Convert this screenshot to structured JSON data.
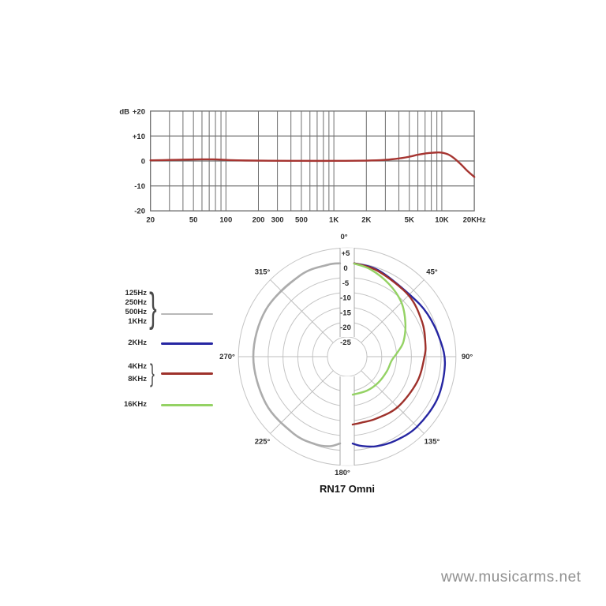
{
  "watermark": "www.musicarms.net",
  "polar_title": "RN17 Omni",
  "colors": {
    "grid": "#6e6e6e",
    "fr_curve": "#a63531",
    "ring": "#c4c4c4",
    "radial": "#bdbdbd",
    "channel_border": "#a8a8a8",
    "text": "#2b2b2b"
  },
  "legend": {
    "groups": [
      {
        "labels": [
          "125Hz",
          "250Hz",
          "500Hz",
          "1KHz"
        ],
        "brace": "}",
        "color": "#b8b8b8"
      },
      {
        "labels": [
          "2KHz"
        ],
        "brace": "",
        "color": "#2626a2"
      },
      {
        "labels": [
          "4KHz",
          "8KHz"
        ],
        "brace": "}",
        "color": "#9e312b"
      },
      {
        "labels": [
          "16KHz"
        ],
        "brace": "",
        "color": "#94d264"
      }
    ]
  },
  "chart_data": [
    {
      "type": "line",
      "name": "frequency-response",
      "ylabel": "dB",
      "xlabel": "",
      "xlim": [
        20,
        20000
      ],
      "ylim": [
        -20,
        20
      ],
      "grid": true,
      "yticks": [
        {
          "label": "+20",
          "db": 20
        },
        {
          "label": "+10",
          "db": 10
        },
        {
          "label": "0",
          "db": 0
        },
        {
          "label": "-10",
          "db": -10
        },
        {
          "label": "-20",
          "db": -20
        }
      ],
      "xticks": [
        {
          "label": "20",
          "f": 20
        },
        {
          "label": "50",
          "f": 50
        },
        {
          "label": "100",
          "f": 100
        },
        {
          "label": "200",
          "f": 200
        },
        {
          "label": "300",
          "f": 300
        },
        {
          "label": "500",
          "f": 500
        },
        {
          "label": "1K",
          "f": 1000
        },
        {
          "label": "2K",
          "f": 2000
        },
        {
          "label": "5K",
          "f": 5000
        },
        {
          "label": "10K",
          "f": 10000
        },
        {
          "label": "20KHz",
          "f": 20000
        }
      ],
      "minor_grid_freqs": [
        30,
        40,
        50,
        60,
        70,
        80,
        90,
        100,
        200,
        300,
        400,
        500,
        600,
        700,
        800,
        900,
        1000,
        2000,
        3000,
        4000,
        5000,
        6000,
        7000,
        8000,
        9000,
        10000
      ],
      "series": [
        {
          "name": "response",
          "color": "#a63531",
          "points": [
            [
              20,
              0.25
            ],
            [
              30,
              0.4
            ],
            [
              45,
              0.55
            ],
            [
              60,
              0.65
            ],
            [
              75,
              0.65
            ],
            [
              90,
              0.55
            ],
            [
              110,
              0.35
            ],
            [
              150,
              0.2
            ],
            [
              250,
              0.1
            ],
            [
              500,
              0.05
            ],
            [
              1000,
              0.05
            ],
            [
              2000,
              0.15
            ],
            [
              3000,
              0.45
            ],
            [
              4000,
              1.0
            ],
            [
              5000,
              1.7
            ],
            [
              6000,
              2.5
            ],
            [
              7000,
              3.0
            ],
            [
              8000,
              3.25
            ],
            [
              9000,
              3.4
            ],
            [
              10000,
              3.35
            ],
            [
              11500,
              2.6
            ],
            [
              13000,
              1.1
            ],
            [
              15000,
              -1.3
            ],
            [
              17000,
              -3.7
            ],
            [
              20000,
              -6.4
            ]
          ]
        }
      ]
    },
    {
      "type": "polar",
      "name": "polar-pattern",
      "title": "RN17 Omni",
      "rings_db": [
        5,
        0,
        -5,
        -10,
        -15,
        -20,
        -25
      ],
      "ring_labels": [
        "+5",
        "0",
        "-5",
        "-10",
        "-15",
        "-20",
        "-25"
      ],
      "angle_labels": [
        {
          "text": "0°",
          "angle": 0
        },
        {
          "text": "45°",
          "angle": 45
        },
        {
          "text": "90°",
          "angle": 90
        },
        {
          "text": "135°",
          "angle": 135
        },
        {
          "text": "180°",
          "angle": 180
        },
        {
          "text": "225°",
          "angle": 225
        },
        {
          "text": "270°",
          "angle": 270
        },
        {
          "text": "315°",
          "angle": 315
        }
      ],
      "series": [
        {
          "name": "125Hz-1KHz",
          "color": "#acacac",
          "width": 2.6,
          "points": [
            [
              184.7,
              -2.3
            ],
            [
              191,
              -0.9
            ],
            [
              200,
              -0.25
            ],
            [
              215,
              -0.05
            ],
            [
              240,
              0
            ],
            [
              270,
              0
            ],
            [
              300,
              0
            ],
            [
              330,
              0
            ],
            [
              348,
              0
            ],
            [
              355.6,
              -0.1
            ]
          ]
        },
        {
          "name": "2KHz",
          "color": "#2626a2",
          "width": 2.4,
          "points": [
            [
              4.3,
              -0.1
            ],
            [
              20,
              -0.7
            ],
            [
              45,
              -2.0
            ],
            [
              62,
              -1.0
            ],
            [
              80,
              0.2
            ],
            [
              95,
              1.4
            ],
            [
              115,
              1.9
            ],
            [
              135,
              1.7
            ],
            [
              150,
              1.0
            ],
            [
              162,
              0.1
            ],
            [
              171,
              -1.2
            ],
            [
              176.4,
              -2.3
            ]
          ]
        },
        {
          "name": "4KHz-8KHz",
          "color": "#9e312b",
          "width": 2.4,
          "points": [
            [
              4.3,
              -0.1
            ],
            [
              20,
              -1.0
            ],
            [
              45,
              -2.4
            ],
            [
              65,
              -3.8
            ],
            [
              80,
              -4.9
            ],
            [
              90,
              -5.6
            ],
            [
              110,
              -6.6
            ],
            [
              135,
              -7.6
            ],
            [
              155,
              -8.6
            ],
            [
              168,
              -8.9
            ],
            [
              175.4,
              -8.7
            ]
          ]
        },
        {
          "name": "16KHz",
          "color": "#94d264",
          "width": 2.4,
          "points": [
            [
              4.3,
              -0.2
            ],
            [
              15,
              -1.2
            ],
            [
              30,
              -3.4
            ],
            [
              45,
              -5.8
            ],
            [
              60,
              -9.0
            ],
            [
              75,
              -12.0
            ],
            [
              85,
              -14.6
            ],
            [
              95,
              -16.6
            ],
            [
              110,
              -17.4
            ],
            [
              130,
              -18.0
            ],
            [
              150,
              -18.4
            ],
            [
              171.7,
              -18.7
            ]
          ]
        }
      ]
    }
  ]
}
